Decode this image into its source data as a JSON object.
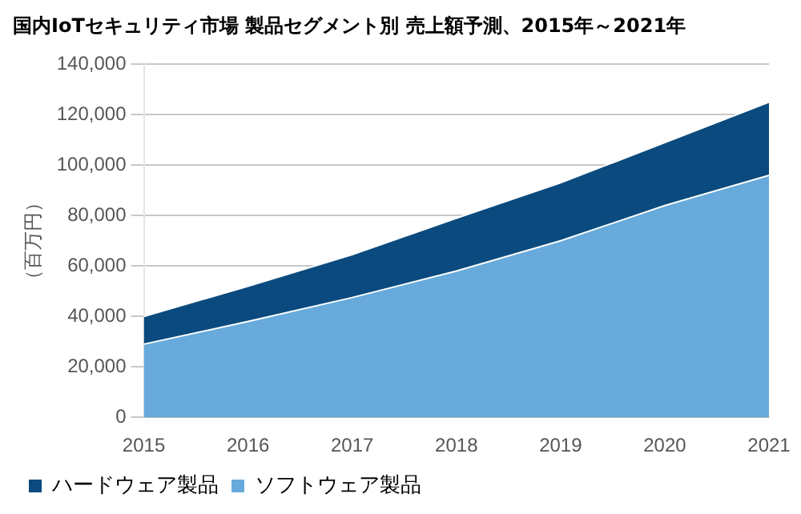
{
  "chart_data": {
    "type": "area",
    "title": "国内IoTセキュリティ市場 製品セグメント別 売上額予測、2015年～2021年",
    "ylabel": "（百万円）",
    "categories": [
      "2015",
      "2016",
      "2017",
      "2018",
      "2019",
      "2020",
      "2021"
    ],
    "stacked": true,
    "series": [
      {
        "name": "ソフトウェア製品",
        "color": "#67aadb",
        "values": [
          29000,
          38000,
          47500,
          58000,
          70000,
          84000,
          96000
        ]
      },
      {
        "name": "ハードウェア製品",
        "color": "#0a4a7e",
        "values": [
          11000,
          14000,
          17000,
          21000,
          23000,
          25000,
          29000
        ]
      }
    ],
    "ylim": [
      0,
      140000
    ],
    "yticks": [
      0,
      {
        "value": 20000,
        "label": "20,000"
      },
      {
        "value": 40000,
        "label": "40,000"
      },
      {
        "value": 60000,
        "label": "60,000"
      },
      {
        "value": 80000,
        "label": "80,000"
      },
      {
        "value": 100000,
        "label": "100,000"
      },
      {
        "value": 120000,
        "label": "120,000"
      },
      {
        "value": 140000,
        "label": "140,000"
      }
    ],
    "grid": "y",
    "legend": "bottom left"
  }
}
